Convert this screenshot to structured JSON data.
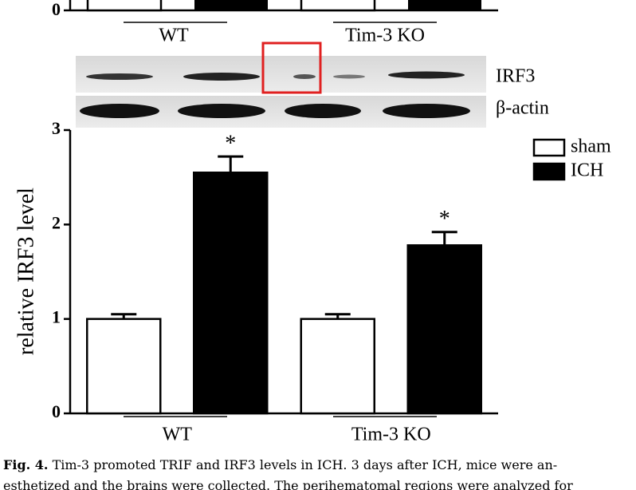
{
  "top_panel": {
    "ytick": "0",
    "groups": [
      "WT",
      "Tim-3 KO"
    ]
  },
  "blot": {
    "labels": [
      "IRF3",
      "β-actin"
    ]
  },
  "chart_data": {
    "type": "bar",
    "categories": [
      "WT",
      "Tim-3 KO"
    ],
    "series": [
      {
        "name": "sham",
        "color": "#ffffff",
        "values": [
          1.0,
          1.0
        ],
        "errors": [
          0.05,
          0.05
        ]
      },
      {
        "name": "ICH",
        "color": "#000000",
        "values": [
          2.55,
          1.78
        ],
        "errors": [
          0.17,
          0.14
        ]
      }
    ],
    "annotations": [
      "*",
      "*"
    ],
    "y_label": "relative IRF3 level",
    "ylim": [
      0,
      3
    ],
    "yticks": [
      0,
      1,
      2,
      3
    ],
    "legend": "upper right"
  },
  "caption": {
    "label": "Fig. 4.",
    "lines": [
      "Tim-3 promoted TRIF and IRF3 levels in ICH. 3 days after ICH, mice were an-",
      "esthetized and the brains were collected. The perihematomal regions were analyzed for"
    ]
  }
}
